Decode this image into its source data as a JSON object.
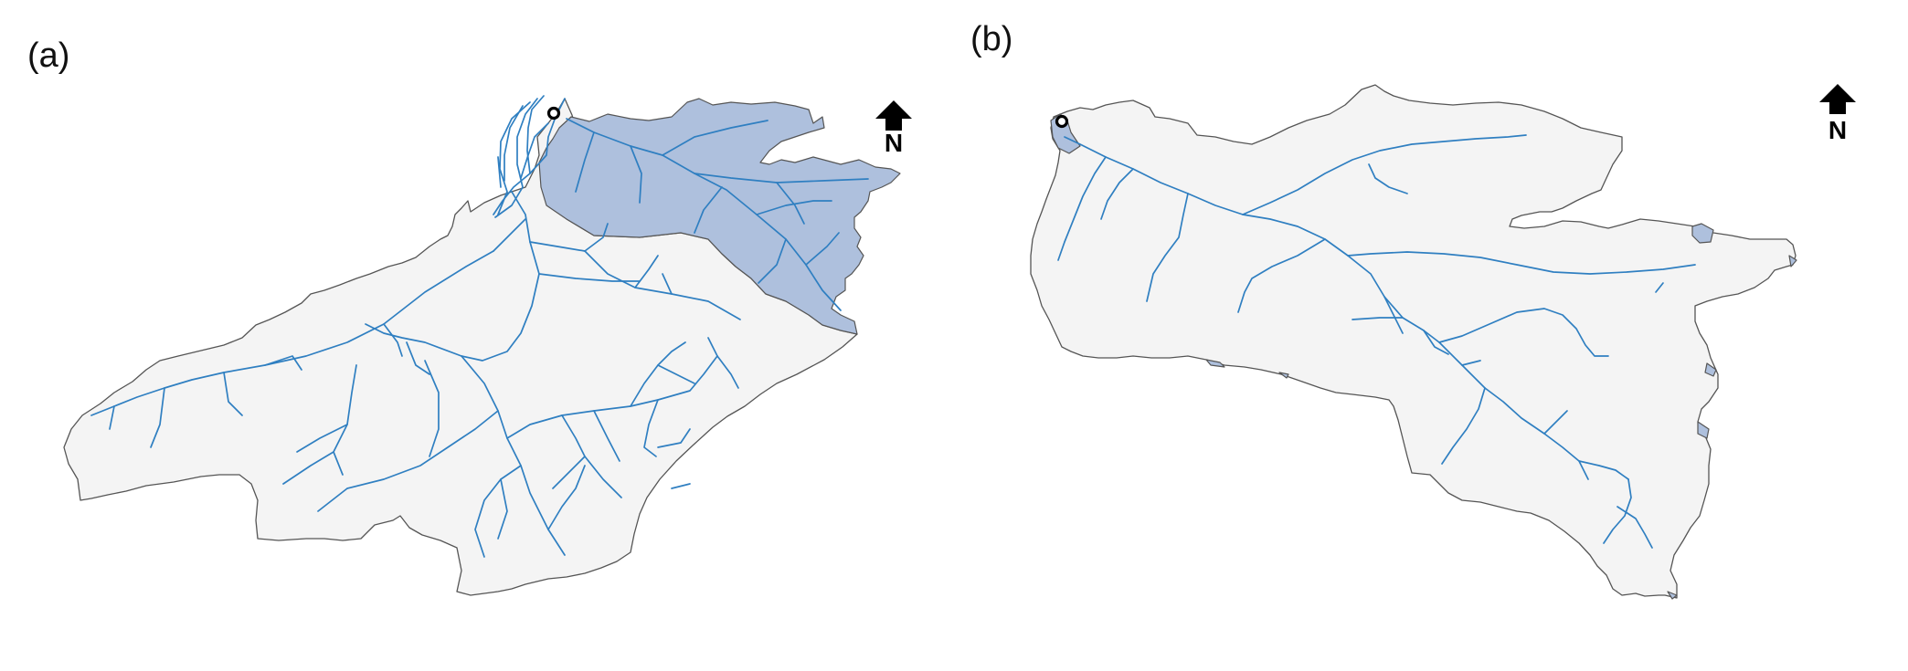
{
  "panels": [
    {
      "id": "a",
      "label": "(a)",
      "north_label": "N"
    },
    {
      "id": "b",
      "label": "(b)",
      "north_label": "N"
    }
  ],
  "colors": {
    "basin_fill": "#f4f4f4",
    "highlight_fill": "#aec0dd",
    "river": "#2f7fc1",
    "outline": "#555555"
  },
  "icons": [
    "north-arrow-icon",
    "outlet-marker-icon"
  ]
}
